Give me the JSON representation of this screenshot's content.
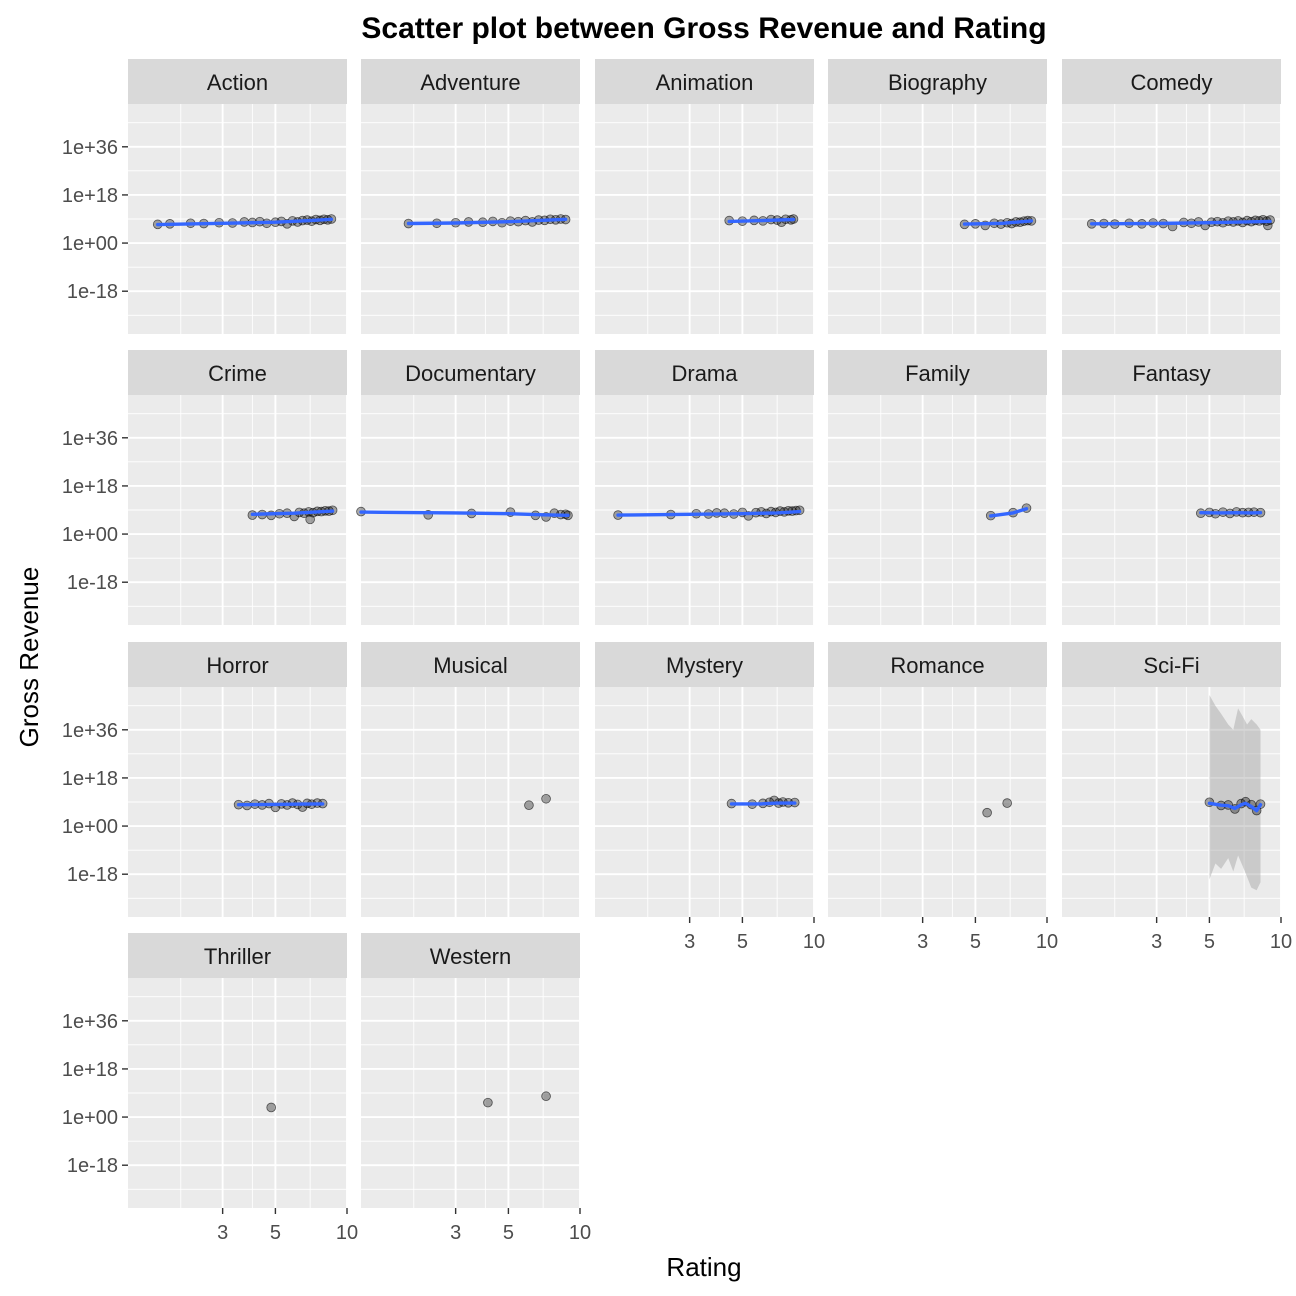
{
  "chart_data": {
    "type": "scatter",
    "title": "Scatter plot between Gross Revenue and Rating",
    "xlabel": "Rating",
    "ylabel": "Gross Revenue",
    "x_scale": "log10",
    "y_scale": "log10",
    "x_ticks": [
      3,
      5,
      10
    ],
    "x_tick_labels": [
      "3",
      "5",
      "10"
    ],
    "xlim": [
      1.2,
      10
    ],
    "y_ticks_log10": [
      36,
      18,
      0,
      -18
    ],
    "y_tick_labels": [
      "1e+36",
      "1e+18",
      "1e+00",
      "1e-18"
    ],
    "ylim_log10": [
      -34,
      52
    ],
    "grid": true,
    "smooth": "loess",
    "point_color": "#000000",
    "smooth_color": "#3366FF",
    "band_color": "#999999",
    "panels": [
      {
        "name": "Action",
        "points": [
          [
            1.6,
            7
          ],
          [
            1.8,
            7.2
          ],
          [
            2.2,
            7.4
          ],
          [
            2.5,
            7.3
          ],
          [
            2.9,
            7.6
          ],
          [
            3.3,
            7.5
          ],
          [
            3.7,
            7.9
          ],
          [
            4.0,
            7.7
          ],
          [
            4.3,
            8.0
          ],
          [
            4.6,
            7.4
          ],
          [
            5.0,
            7.8
          ],
          [
            5.3,
            8.1
          ],
          [
            5.6,
            7.2
          ],
          [
            5.9,
            8.3
          ],
          [
            6.2,
            7.9
          ],
          [
            6.5,
            8.4
          ],
          [
            6.8,
            8.6
          ],
          [
            7.1,
            8.2
          ],
          [
            7.4,
            8.8
          ],
          [
            7.7,
            8.5
          ],
          [
            8.0,
            8.9
          ],
          [
            8.3,
            8.7
          ],
          [
            8.6,
            9.0
          ]
        ],
        "smooth": [
          [
            1.6,
            6.9
          ],
          [
            3,
            7.4
          ],
          [
            5,
            7.8
          ],
          [
            7,
            8.4
          ],
          [
            8.6,
            8.9
          ]
        ]
      },
      {
        "name": "Adventure",
        "points": [
          [
            1.9,
            7.3
          ],
          [
            2.5,
            7.4
          ],
          [
            3.0,
            7.6
          ],
          [
            3.4,
            7.9
          ],
          [
            3.9,
            7.8
          ],
          [
            4.3,
            8.1
          ],
          [
            4.7,
            7.6
          ],
          [
            5.1,
            8.2
          ],
          [
            5.5,
            8.0
          ],
          [
            5.9,
            8.4
          ],
          [
            6.3,
            7.9
          ],
          [
            6.7,
            8.6
          ],
          [
            7.1,
            8.5
          ],
          [
            7.5,
            8.9
          ],
          [
            7.9,
            8.7
          ],
          [
            8.3,
            9.0
          ],
          [
            8.7,
            8.8
          ]
        ],
        "smooth": [
          [
            1.9,
            7.3
          ],
          [
            3,
            7.5
          ],
          [
            5,
            8.0
          ],
          [
            7,
            8.5
          ],
          [
            8.7,
            8.9
          ]
        ]
      },
      {
        "name": "Animation",
        "points": [
          [
            4.4,
            8.4
          ],
          [
            5.0,
            8.2
          ],
          [
            5.6,
            8.5
          ],
          [
            6.1,
            8.3
          ],
          [
            6.6,
            8.8
          ],
          [
            7.0,
            8.6
          ],
          [
            7.3,
            7.8
          ],
          [
            7.6,
            8.9
          ],
          [
            8.0,
            8.7
          ],
          [
            8.2,
            9.0
          ]
        ],
        "smooth": [
          [
            4.4,
            8.1
          ],
          [
            6,
            8.4
          ],
          [
            8.2,
            8.8
          ]
        ]
      },
      {
        "name": "Biography",
        "points": [
          [
            4.5,
            7.0
          ],
          [
            5.0,
            7.2
          ],
          [
            5.5,
            6.6
          ],
          [
            6.0,
            7.4
          ],
          [
            6.4,
            7.1
          ],
          [
            6.8,
            7.6
          ],
          [
            7.1,
            7.3
          ],
          [
            7.4,
            7.9
          ],
          [
            7.7,
            7.8
          ],
          [
            8.0,
            8.2
          ],
          [
            8.3,
            8.4
          ],
          [
            8.6,
            8.3
          ]
        ],
        "smooth": [
          [
            4.5,
            7.1
          ],
          [
            6.5,
            7.4
          ],
          [
            8.6,
            8.3
          ]
        ]
      },
      {
        "name": "Comedy",
        "points": [
          [
            1.6,
            7.2
          ],
          [
            1.8,
            7.3
          ],
          [
            2.0,
            7.1
          ],
          [
            2.3,
            7.4
          ],
          [
            2.6,
            7.2
          ],
          [
            2.9,
            7.5
          ],
          [
            3.2,
            7.3
          ],
          [
            3.5,
            6.2
          ],
          [
            3.9,
            7.7
          ],
          [
            4.2,
            7.4
          ],
          [
            4.5,
            7.9
          ],
          [
            4.8,
            6.6
          ],
          [
            5.1,
            7.8
          ],
          [
            5.4,
            8.0
          ],
          [
            5.7,
            7.6
          ],
          [
            6.0,
            8.2
          ],
          [
            6.3,
            7.9
          ],
          [
            6.6,
            8.3
          ],
          [
            6.9,
            7.7
          ],
          [
            7.2,
            8.4
          ],
          [
            7.5,
            8.0
          ],
          [
            7.8,
            8.5
          ],
          [
            8.1,
            8.3
          ],
          [
            8.4,
            8.7
          ],
          [
            8.7,
            8.2
          ],
          [
            9.0,
            8.6
          ],
          [
            8.8,
            6.6
          ]
        ],
        "smooth": [
          [
            1.6,
            7.2
          ],
          [
            3,
            7.3
          ],
          [
            5,
            7.6
          ],
          [
            7,
            7.9
          ],
          [
            9,
            8.1
          ]
        ]
      },
      {
        "name": "Crime",
        "points": [
          [
            4.0,
            7.1
          ],
          [
            4.4,
            7.3
          ],
          [
            4.8,
            7.0
          ],
          [
            5.2,
            7.6
          ],
          [
            5.6,
            7.8
          ],
          [
            6.0,
            6.6
          ],
          [
            6.3,
            8.1
          ],
          [
            6.6,
            7.8
          ],
          [
            6.9,
            8.3
          ],
          [
            7.2,
            8.0
          ],
          [
            7.5,
            8.5
          ],
          [
            7.8,
            8.4
          ],
          [
            8.1,
            8.7
          ],
          [
            8.4,
            8.6
          ],
          [
            8.7,
            8.9
          ],
          [
            7.0,
            5.5
          ]
        ],
        "smooth": [
          [
            4.0,
            7.4
          ],
          [
            6,
            7.8
          ],
          [
            8.7,
            8.6
          ]
        ]
      },
      {
        "name": "Documentary",
        "points": [
          [
            1.2,
            8.4
          ],
          [
            2.3,
            7.2
          ],
          [
            3.5,
            7.7
          ],
          [
            5.1,
            8.2
          ],
          [
            6.5,
            7.0
          ],
          [
            7.2,
            6.4
          ],
          [
            7.8,
            7.8
          ],
          [
            8.3,
            7.3
          ],
          [
            8.7,
            7.4
          ],
          [
            8.9,
            7.0
          ]
        ],
        "smooth": [
          [
            1.2,
            8.2
          ],
          [
            3,
            7.9
          ],
          [
            5,
            7.6
          ],
          [
            7,
            7.2
          ],
          [
            8.9,
            7.0
          ]
        ]
      },
      {
        "name": "Drama",
        "points": [
          [
            1.5,
            7.1
          ],
          [
            2.5,
            7.3
          ],
          [
            3.2,
            7.6
          ],
          [
            3.6,
            7.5
          ],
          [
            3.9,
            7.9
          ],
          [
            4.2,
            7.8
          ],
          [
            4.6,
            7.5
          ],
          [
            5.0,
            8.1
          ],
          [
            5.3,
            6.8
          ],
          [
            5.7,
            8.0
          ],
          [
            6.0,
            8.3
          ],
          [
            6.3,
            7.7
          ],
          [
            6.6,
            8.4
          ],
          [
            6.9,
            8.1
          ],
          [
            7.2,
            8.6
          ],
          [
            7.5,
            8.3
          ],
          [
            7.8,
            8.7
          ],
          [
            8.1,
            8.6
          ],
          [
            8.4,
            8.8
          ],
          [
            8.7,
            8.9
          ]
        ],
        "smooth": [
          [
            1.5,
            7.1
          ],
          [
            3,
            7.4
          ],
          [
            5,
            7.6
          ],
          [
            7,
            7.9
          ],
          [
            8.7,
            8.4
          ]
        ]
      },
      {
        "name": "Family",
        "points": [
          [
            5.8,
            6.9
          ],
          [
            7.2,
            8.0
          ],
          [
            8.2,
            9.7
          ]
        ],
        "smooth": [
          [
            5.8,
            6.8
          ],
          [
            7.2,
            7.9
          ],
          [
            8.2,
            9.5
          ]
        ]
      },
      {
        "name": "Fantasy",
        "points": [
          [
            4.6,
            7.8
          ],
          [
            5.0,
            8.1
          ],
          [
            5.3,
            7.6
          ],
          [
            5.7,
            8.2
          ],
          [
            6.1,
            7.7
          ],
          [
            6.5,
            8.3
          ],
          [
            6.9,
            8.0
          ],
          [
            7.3,
            8.1
          ],
          [
            7.7,
            8.2
          ],
          [
            8.2,
            8.0
          ]
        ],
        "smooth": [
          [
            4.6,
            8.0
          ],
          [
            5.5,
            7.9
          ],
          [
            6.5,
            8.0
          ],
          [
            7.5,
            7.9
          ],
          [
            8.2,
            8.0
          ]
        ]
      },
      {
        "name": "Horror",
        "points": [
          [
            3.5,
            8.0
          ],
          [
            3.8,
            7.7
          ],
          [
            4.1,
            8.2
          ],
          [
            4.4,
            7.9
          ],
          [
            4.7,
            8.4
          ],
          [
            5.0,
            7.0
          ],
          [
            5.3,
            8.3
          ],
          [
            5.6,
            7.9
          ],
          [
            5.9,
            8.6
          ],
          [
            6.2,
            8.1
          ],
          [
            6.5,
            7.1
          ],
          [
            6.8,
            8.5
          ],
          [
            7.1,
            8.2
          ],
          [
            7.5,
            8.6
          ],
          [
            7.9,
            8.4
          ]
        ],
        "smooth": [
          [
            3.5,
            8.0
          ],
          [
            5,
            8.1
          ],
          [
            6.5,
            8.2
          ],
          [
            7.9,
            8.3
          ]
        ]
      },
      {
        "name": "Musical",
        "points": [
          [
            6.1,
            7.8
          ],
          [
            7.2,
            10.2
          ]
        ],
        "smooth": []
      },
      {
        "name": "Mystery",
        "points": [
          [
            4.5,
            8.4
          ],
          [
            5.5,
            8.2
          ],
          [
            6.1,
            8.5
          ],
          [
            6.5,
            8.9
          ],
          [
            6.8,
            9.6
          ],
          [
            7.1,
            8.6
          ],
          [
            7.4,
            9.0
          ],
          [
            7.8,
            8.7
          ],
          [
            8.3,
            8.8
          ]
        ],
        "smooth": [
          [
            4.5,
            8.3
          ],
          [
            6,
            8.3
          ],
          [
            7,
            8.6
          ],
          [
            8.3,
            8.6
          ]
        ]
      },
      {
        "name": "Romance",
        "points": [
          [
            5.6,
            5.0
          ],
          [
            6.8,
            8.6
          ]
        ],
        "smooth": []
      },
      {
        "name": "Sci-Fi",
        "points": [
          [
            5.0,
            8.9
          ],
          [
            5.6,
            7.7
          ],
          [
            6.0,
            7.9
          ],
          [
            6.4,
            6.4
          ],
          [
            6.8,
            8.4
          ],
          [
            7.1,
            9.1
          ],
          [
            7.5,
            8.0
          ],
          [
            7.9,
            5.8
          ],
          [
            8.2,
            8.2
          ]
        ],
        "smooth": [
          [
            5.0,
            8.5
          ],
          [
            5.6,
            7.8
          ],
          [
            6.0,
            7.6
          ],
          [
            6.4,
            6.6
          ],
          [
            6.8,
            8.0
          ],
          [
            7.1,
            8.5
          ],
          [
            7.5,
            7.3
          ],
          [
            7.9,
            5.8
          ],
          [
            8.2,
            8.0
          ]
        ],
        "band": [
          [
            5.0,
            -20,
            49
          ],
          [
            5.3,
            -14,
            45
          ],
          [
            5.6,
            -16,
            42
          ],
          [
            6.0,
            -12,
            38
          ],
          [
            6.3,
            -17,
            36
          ],
          [
            6.6,
            -11,
            44
          ],
          [
            6.9,
            -15,
            41
          ],
          [
            7.2,
            -19,
            38
          ],
          [
            7.5,
            -23,
            40
          ],
          [
            7.9,
            -24,
            38
          ],
          [
            8.2,
            -21,
            36
          ]
        ]
      },
      {
        "name": "Thriller",
        "points": [
          [
            4.8,
            3.6
          ]
        ],
        "smooth": []
      },
      {
        "name": "Western",
        "points": [
          [
            4.1,
            5.4
          ],
          [
            7.2,
            7.8
          ]
        ],
        "smooth": []
      }
    ]
  }
}
